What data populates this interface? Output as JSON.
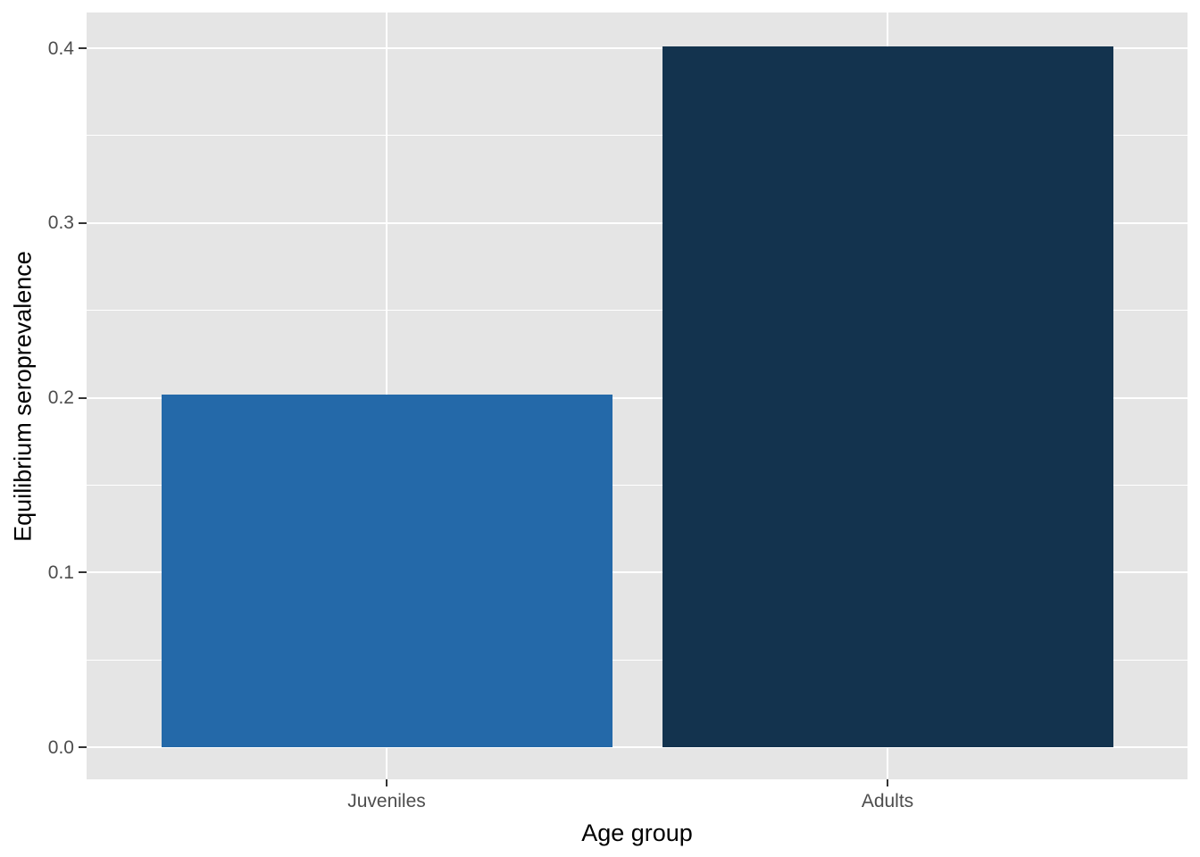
{
  "chart_data": {
    "type": "bar",
    "title": "",
    "categories": [
      "Juveniles",
      "Adults"
    ],
    "values": [
      0.202,
      0.401
    ],
    "xlabel": "Age group",
    "ylabel": "Equilibrium seroprevalence",
    "ylim": [
      0,
      0.42
    ],
    "y_major_ticks": [
      0.0,
      0.1,
      0.2,
      0.3,
      0.4
    ],
    "y_tick_labels": [
      "0.0",
      "0.1",
      "0.2",
      "0.3",
      "0.4"
    ],
    "y_minor_ticks": [
      0.05,
      0.15,
      0.25,
      0.35
    ],
    "grid": true,
    "legend_position": "none",
    "colors": {
      "bar_juveniles": "#2469A9",
      "bar_adults": "#13334E",
      "panel_background": "#E5E5E5",
      "gridline": "#FFFFFF",
      "axis_text": "#4D4D4D",
      "axis_title": "#000000",
      "tick_mark": "#333333",
      "page_background": "#FFFFFF"
    }
  }
}
